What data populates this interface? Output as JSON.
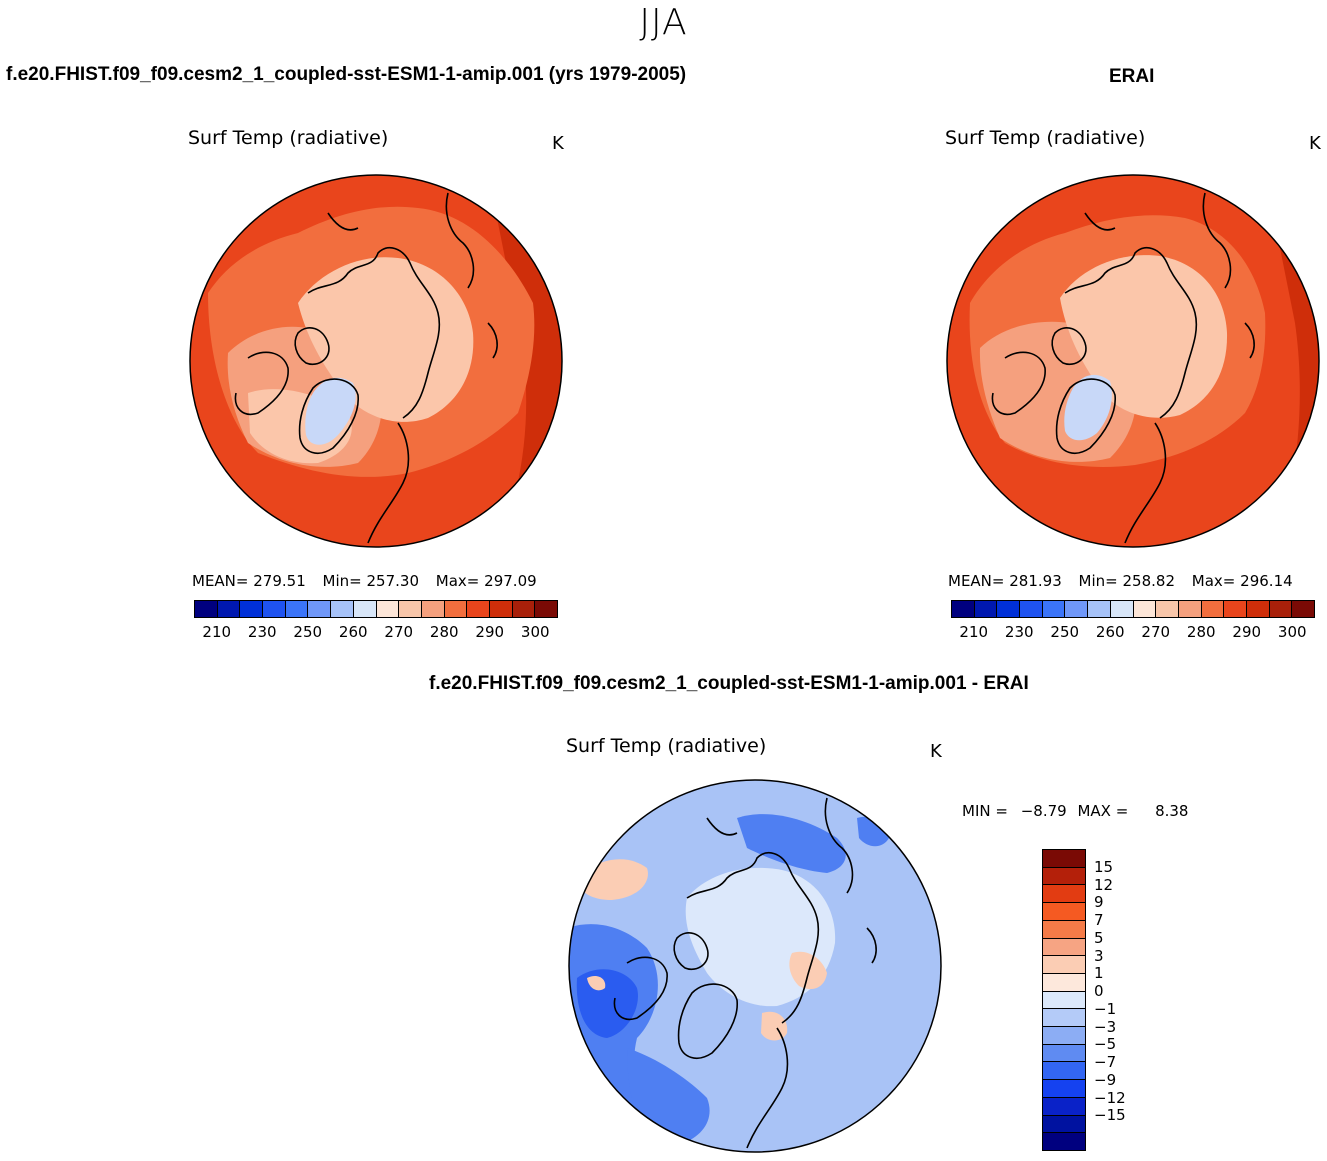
{
  "season": "JJA",
  "panels": {
    "model": {
      "header": "f.e20.FHIST.f09_f09.cesm2_1_coupled-sst-ESM1-1-amip.001 (yrs 1979-2005)",
      "title": "Surf Temp (radiative)",
      "unit": "K",
      "stats": {
        "mean_label": "MEAN=",
        "mean": "279.51",
        "min_label": "Min=",
        "min": "257.30",
        "max_label": "Max=",
        "max": "297.09"
      }
    },
    "obs": {
      "header": "ERAI",
      "title": "Surf Temp (radiative)",
      "unit": "K",
      "stats": {
        "mean_label": "MEAN=",
        "mean": "281.93",
        "min_label": "Min=",
        "min": "258.82",
        "max_label": "Max=",
        "max": "296.14"
      }
    },
    "diff": {
      "header": "f.e20.FHIST.f09_f09.cesm2_1_coupled-sst-ESM1-1-amip.001 - ERAI",
      "title": "Surf Temp (radiative)",
      "unit": "K",
      "minmax": {
        "min_label": "MIN =",
        "min": "−8.79",
        "max_label": "MAX =",
        "max": "8.38"
      }
    }
  },
  "colorbar_abs": {
    "colors": [
      "#00007f",
      "#0018b0",
      "#0030d8",
      "#1f53f0",
      "#3b74f8",
      "#6f97f8",
      "#a6c2f8",
      "#d8e6f8",
      "#fde6d8",
      "#f8c6aa",
      "#f5a07e",
      "#f26e3e",
      "#e9451c",
      "#cf2e0a",
      "#a8200a",
      "#7a0a05"
    ],
    "tick_labels": [
      "210",
      "230",
      "250",
      "260",
      "270",
      "280",
      "290",
      "300"
    ]
  },
  "colorbar_diff": {
    "colors": [
      "#7a0a05",
      "#b4200a",
      "#e23c12",
      "#f55a22",
      "#f57b48",
      "#f6a483",
      "#fbcdb4",
      "#fde8dc",
      "#dce9fb",
      "#b4cbf8",
      "#8cadf4",
      "#5f8bf2",
      "#3366f3",
      "#1542f0",
      "#0a22c8",
      "#0012a0",
      "#00007f"
    ],
    "tick_labels": [
      "15",
      "12",
      "9",
      "7",
      "5",
      "3",
      "1",
      "0",
      "−1",
      "−3",
      "−5",
      "−7",
      "−9",
      "−12",
      "−15"
    ]
  },
  "map_colors": {
    "warm_sea": "#e9451c",
    "warm_land": "#f26e3e",
    "hot": "#cf2e0a",
    "arctic": "#fbc6aa",
    "land_mid": "#f5a07e",
    "ice_cold": "#c8d8f8",
    "diff_base": "#a9c3f6",
    "diff_ocean": "#dce8fb",
    "diff_blue": "#4f7ff2",
    "diff_deep": "#2a5cf0",
    "diff_warm": "#fbcdb4",
    "coast": "#000000"
  }
}
